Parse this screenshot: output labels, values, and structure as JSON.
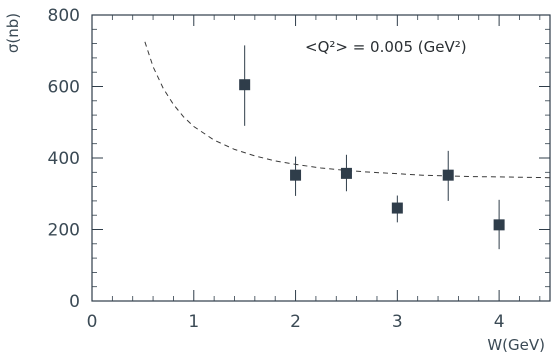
{
  "chart_data": {
    "type": "scatter",
    "xlabel": "W(GeV)",
    "ylabel": "σ(nb)",
    "xlim": [
      0,
      4.5
    ],
    "ylim": [
      0,
      800
    ],
    "x_ticks": [
      "0",
      "1",
      "2",
      "3",
      "4"
    ],
    "y_ticks": [
      "0",
      "200",
      "400",
      "600",
      "800"
    ],
    "annotation": "<Q²> = 0.005 (GeV²)",
    "series": [
      {
        "style": "points-with-errors",
        "color": "#2f3d4a",
        "x": [
          1.5,
          2.0,
          2.5,
          3.0,
          3.5,
          4.0
        ],
        "y": [
          605,
          352,
          357,
          260,
          352,
          213
        ],
        "err_low": [
          115,
          58,
          50,
          40,
          72,
          68
        ],
        "err_high": [
          110,
          52,
          52,
          35,
          68,
          70
        ]
      },
      {
        "style": "dashed-curve",
        "color": "#3a3a3a",
        "x": [
          0.52,
          0.6,
          0.7,
          0.8,
          0.9,
          1.0,
          1.2,
          1.4,
          1.6,
          1.8,
          2.0,
          2.25,
          2.5,
          2.75,
          3.0,
          3.25,
          3.5,
          3.75,
          4.0,
          4.25,
          4.5
        ],
        "y": [
          725,
          655,
          595,
          550,
          515,
          488,
          450,
          424,
          406,
          392,
          382,
          372,
          365,
          360,
          356,
          352,
          350,
          348,
          347,
          346,
          345
        ]
      }
    ]
  }
}
